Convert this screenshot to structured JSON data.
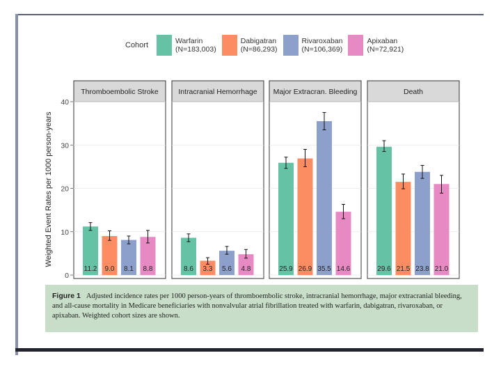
{
  "chart_data": {
    "type": "bar",
    "ylabel": "Weighted Event Rates per 1000 person-years",
    "ylim": [
      0,
      40
    ],
    "yticks": [
      0,
      10,
      20,
      30,
      40
    ],
    "legend_title": "Cohort",
    "series": [
      {
        "name": "Warfarin",
        "n_label": "(N=183,003)",
        "color": "#66c2a5"
      },
      {
        "name": "Dabigatran",
        "n_label": "(N=86,293)",
        "color": "#fc8d62"
      },
      {
        "name": "Rivaroxaban",
        "n_label": "(N=106,369)",
        "color": "#8da0cb"
      },
      {
        "name": "Apixaban",
        "n_label": "(N=72,921)",
        "color": "#e78ac3"
      }
    ],
    "panels": [
      {
        "title": "Thromboembolic Stroke",
        "values": [
          11.2,
          9.0,
          8.1,
          8.8
        ],
        "labels": [
          "11.2",
          "9.0",
          "8.1",
          "8.8"
        ],
        "err_low": [
          10.3,
          8.0,
          7.2,
          7.4
        ],
        "err_high": [
          12.1,
          10.2,
          9.0,
          10.3
        ]
      },
      {
        "title": "Intracranial Hemorrhage",
        "values": [
          8.6,
          3.3,
          5.6,
          4.8
        ],
        "labels": [
          "8.6",
          "3.3",
          "5.6",
          "4.8"
        ],
        "err_low": [
          7.7,
          2.5,
          4.8,
          3.9
        ],
        "err_high": [
          9.5,
          4.0,
          6.6,
          5.9
        ]
      },
      {
        "title": "Major Extracran. Bleeding",
        "values": [
          25.9,
          26.9,
          35.5,
          14.6
        ],
        "labels": [
          "25.9",
          "26.9",
          "35.5",
          "14.6"
        ],
        "err_low": [
          24.6,
          25.0,
          33.5,
          13.0
        ],
        "err_high": [
          27.2,
          29.0,
          37.5,
          16.3
        ]
      },
      {
        "title": "Death",
        "values": [
          29.6,
          21.5,
          23.8,
          21.0
        ],
        "labels": [
          "29.6",
          "21.5",
          "23.8",
          "21.0"
        ],
        "err_low": [
          28.5,
          19.9,
          22.3,
          18.9
        ],
        "err_high": [
          31.0,
          23.3,
          25.3,
          23.0
        ]
      }
    ]
  },
  "caption": {
    "label": "Figure 1",
    "text": "Adjusted incidence rates per 1000 person-years of thromboembolic stroke, intracranial hemorrhage, major extracranial bleeding, and all-cause mortality in Medicare beneficiaries with nonvalvular atrial fibrillation treated with warfarin, dabigatran, rivaroxaban, or apixaban. Weighted cohort sizes are shown."
  }
}
